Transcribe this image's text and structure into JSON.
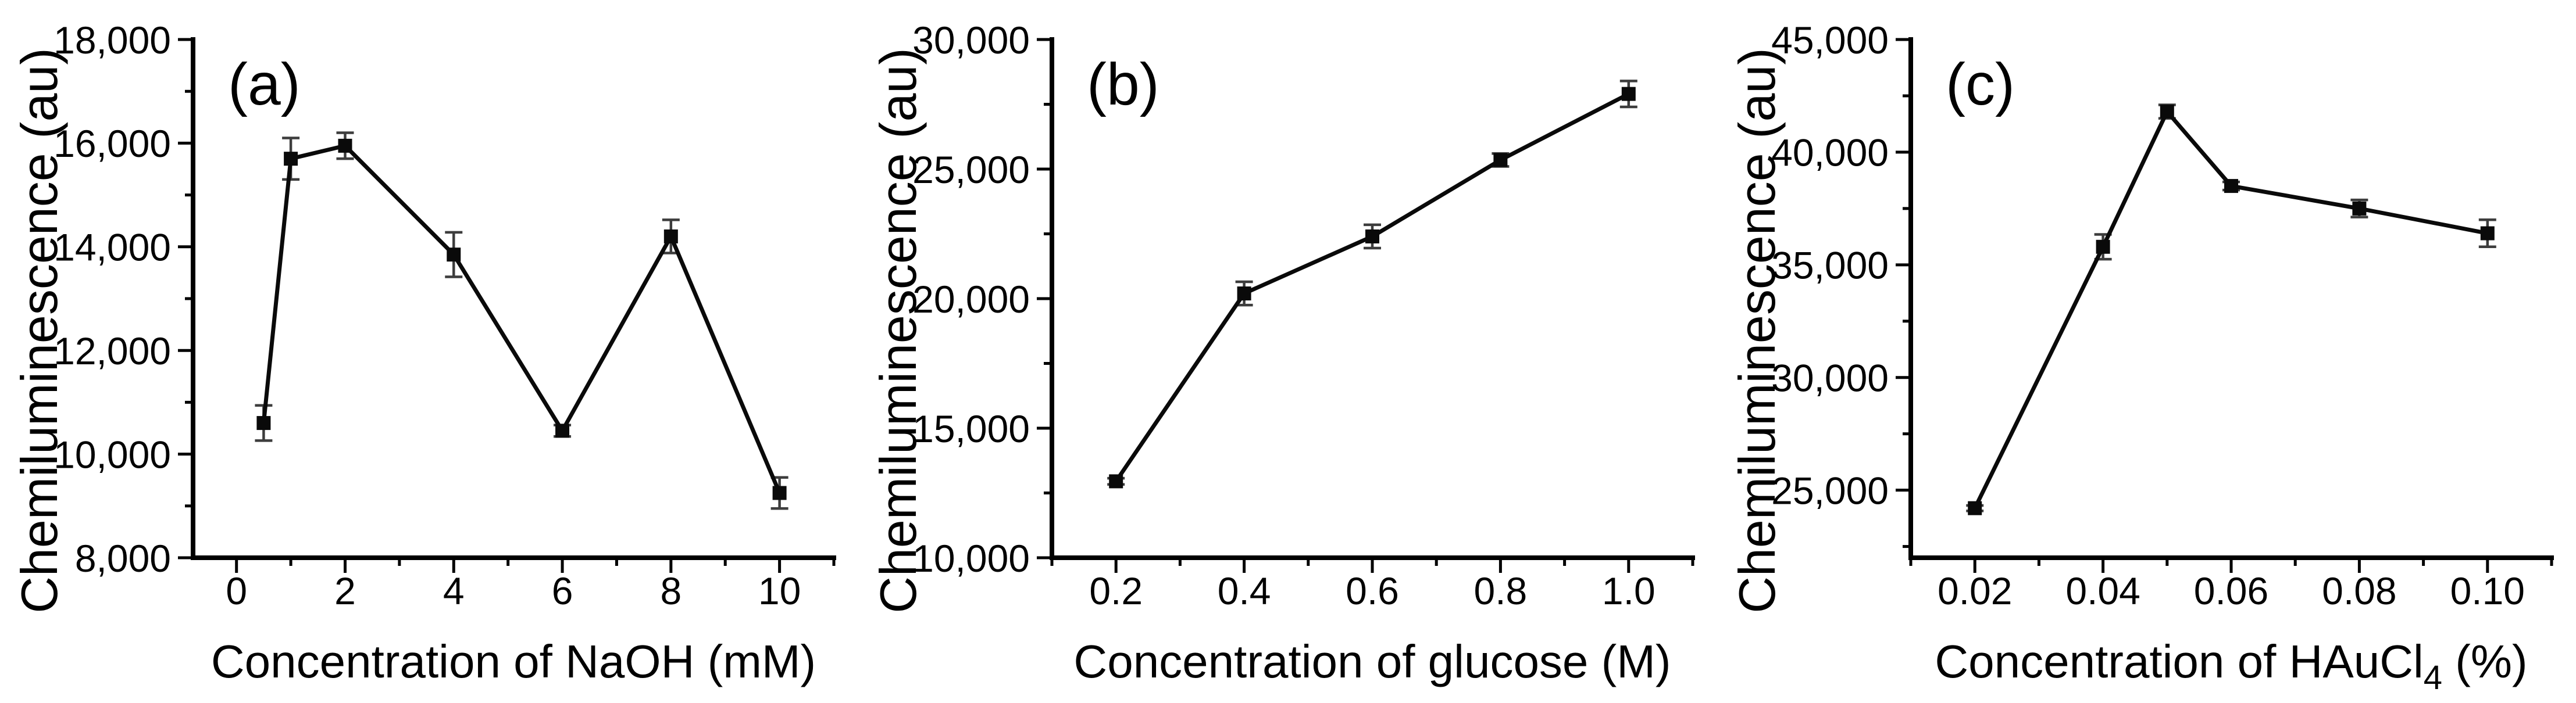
{
  "figure": {
    "background_color": "#ffffff",
    "axis_color": "#000000",
    "text_color": "#000000",
    "data_line_color": "#0a0a0a",
    "error_bar_color": "#3d3d3d",
    "marker_shape": "filled-square"
  },
  "chart_data": [
    {
      "type": "line",
      "panel_label": "(a)",
      "title": "",
      "ylabel": "Chemiluminescence (au)",
      "xlabel_parts": [
        {
          "text": "Concentration of NaOH (mM)",
          "sub": false
        }
      ],
      "x": [
        0.5,
        1,
        2,
        4,
        6,
        8,
        10
      ],
      "y": [
        10600,
        15700,
        15950,
        13850,
        10450,
        14200,
        9250
      ],
      "yerr": [
        340,
        400,
        250,
        430,
        110,
        320,
        300
      ],
      "xlim": [
        -0.8,
        11
      ],
      "ylim": [
        8000,
        18000
      ],
      "xticks": [
        0,
        2,
        4,
        6,
        8,
        10
      ],
      "xtick_labels": [
        "0",
        "2",
        "4",
        "6",
        "8",
        "10"
      ],
      "xminor_ticks": [
        1,
        3,
        5,
        7,
        9,
        11
      ],
      "yticks": [
        8000,
        10000,
        12000,
        14000,
        16000,
        18000
      ],
      "ytick_labels": [
        "8,000",
        "10,000",
        "12,000",
        "14,000",
        "16,000",
        "18,000"
      ],
      "yminor_ticks": [
        9000,
        11000,
        13000,
        15000,
        17000
      ],
      "grid": false,
      "legend": null
    },
    {
      "type": "line",
      "panel_label": "(b)",
      "title": "",
      "ylabel": "Chemiluminescence (au)",
      "xlabel_parts": [
        {
          "text": "Concentration of glucose (M)",
          "sub": false
        }
      ],
      "x": [
        0.2,
        0.4,
        0.6,
        0.8,
        1.0
      ],
      "y": [
        12950,
        20200,
        22400,
        25350,
        27900
      ],
      "yerr": [
        120,
        450,
        450,
        250,
        500
      ],
      "xlim": [
        0.1,
        1.1
      ],
      "ylim": [
        10000,
        30000
      ],
      "xticks": [
        0.2,
        0.4,
        0.6,
        0.8,
        1.0
      ],
      "xtick_labels": [
        "0.2",
        "0.4",
        "0.6",
        "0.8",
        "1.0"
      ],
      "xminor_ticks": [
        0.1,
        0.3,
        0.5,
        0.7,
        0.9,
        1.1
      ],
      "yticks": [
        10000,
        15000,
        20000,
        25000,
        30000
      ],
      "ytick_labels": [
        "10,000",
        "15,000",
        "20,000",
        "25,000",
        "30,000"
      ],
      "yminor_ticks": [
        12500,
        17500,
        22500,
        27500
      ],
      "grid": false,
      "legend": null
    },
    {
      "type": "line",
      "panel_label": "(c)",
      "title": "",
      "ylabel": "Chemiluminescence (au)",
      "xlabel_parts": [
        {
          "text": "Concentration of HAuCl",
          "sub": false
        },
        {
          "text": "4",
          "sub": true
        },
        {
          "text": " (%)",
          "sub": false
        }
      ],
      "x": [
        0.02,
        0.04,
        0.05,
        0.06,
        0.08,
        0.1
      ],
      "y": [
        24200,
        35800,
        41800,
        38500,
        37500,
        36400
      ],
      "yerr": [
        120,
        550,
        300,
        180,
        380,
        600
      ],
      "xlim": [
        0.01,
        0.11
      ],
      "ylim": [
        22000,
        45000
      ],
      "xticks": [
        0.02,
        0.04,
        0.06,
        0.08,
        0.1
      ],
      "xtick_labels": [
        "0.02",
        "0.04",
        "0.06",
        "0.08",
        "0.10"
      ],
      "xminor_ticks": [
        0.01,
        0.03,
        0.05,
        0.07,
        0.09,
        0.11
      ],
      "yticks": [
        25000,
        30000,
        35000,
        40000,
        45000
      ],
      "ytick_labels": [
        "25,000",
        "30,000",
        "35,000",
        "40,000",
        "45,000"
      ],
      "yminor_ticks": [
        22500,
        27500,
        32500,
        37500,
        42500
      ],
      "grid": false,
      "legend": null
    }
  ]
}
